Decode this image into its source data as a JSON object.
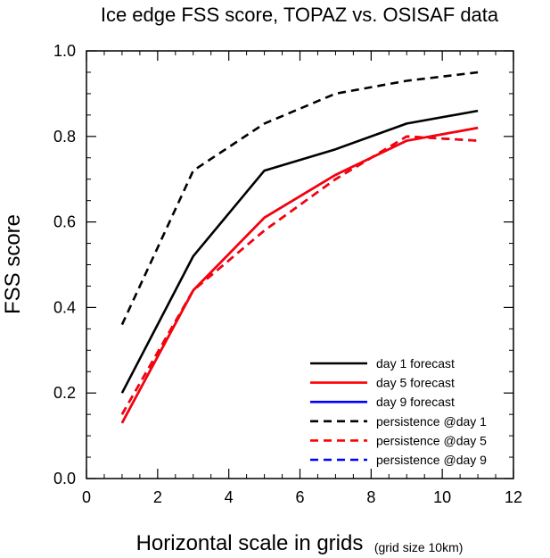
{
  "chart_data": {
    "type": "line",
    "title": "Ice edge FSS score, TOPAZ vs. OSISAF data",
    "xlabel": "Horizontal scale in grids",
    "xlabel_note": "(grid size 10km)",
    "ylabel": "FSS score",
    "xlim": [
      0,
      12
    ],
    "ylim": [
      0,
      1.0
    ],
    "xticks": [
      0,
      2,
      4,
      6,
      8,
      10,
      12
    ],
    "yticks": [
      0.0,
      0.2,
      0.4,
      0.6,
      0.8,
      1.0
    ],
    "xtick_labels": [
      "0",
      "2",
      "4",
      "6",
      "8",
      "10",
      "12"
    ],
    "ytick_labels": [
      "0.0",
      "0.2",
      "0.4",
      "0.6",
      "0.8",
      "1.0"
    ],
    "grid": false,
    "legend_position": "bottom-right",
    "series": [
      {
        "name": "day 1 forecast",
        "color": "#000000",
        "dash": "solid",
        "x": [
          1,
          3,
          5,
          7,
          9,
          11
        ],
        "values": [
          0.2,
          0.52,
          0.72,
          0.77,
          0.83,
          0.86
        ]
      },
      {
        "name": "day 5 forecast",
        "color": "#ff0000",
        "dash": "solid",
        "x": [
          1,
          3,
          5,
          7,
          9,
          11
        ],
        "values": [
          0.13,
          0.44,
          0.61,
          0.71,
          0.79,
          0.82
        ]
      },
      {
        "name": "day 9 forecast",
        "color": "#0000ff",
        "dash": "solid",
        "x": [
          1,
          3,
          5,
          7,
          9,
          11
        ],
        "values": [
          0.13,
          0.44,
          0.61,
          0.71,
          0.79,
          0.82
        ]
      },
      {
        "name": "persistence @day 1",
        "color": "#000000",
        "dash": "dashed",
        "x": [
          1,
          3,
          5,
          7,
          9,
          11
        ],
        "values": [
          0.36,
          0.72,
          0.83,
          0.9,
          0.93,
          0.95
        ]
      },
      {
        "name": "persistence @day 5",
        "color": "#ff0000",
        "dash": "dashed",
        "x": [
          1,
          3,
          5,
          7,
          9,
          11
        ],
        "values": [
          0.15,
          0.44,
          0.58,
          0.7,
          0.8,
          0.79
        ]
      },
      {
        "name": "persistence @day 9",
        "color": "#0000ff",
        "dash": "dashed",
        "x": [
          1,
          3,
          5,
          7,
          9,
          11
        ],
        "values": [
          0.15,
          0.44,
          0.58,
          0.7,
          0.8,
          0.79
        ]
      }
    ],
    "draw_order": [
      2,
      5,
      3,
      0,
      1,
      4
    ]
  }
}
